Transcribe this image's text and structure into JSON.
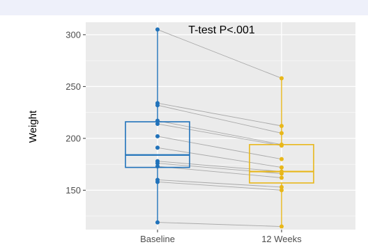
{
  "chart_data": {
    "type": "box",
    "title": "",
    "xlabel": "",
    "ylabel": "Weight",
    "categories": [
      "Baseline",
      "12 Weeks"
    ],
    "ylim": [
      112,
      312
    ],
    "yticks": [
      150,
      200,
      250,
      300
    ],
    "grid": true,
    "annotation": "T-test P<.001",
    "colors": {
      "Baseline": "#2072ba",
      "12 Weeks": "#e8b71a",
      "panel": "#ebebeb",
      "gridline": "#ffffff",
      "pairline": "#a8a8a8"
    },
    "boxes": [
      {
        "category": "Baseline",
        "q1": 172,
        "median": 184,
        "q3": 216,
        "whisker_low": 119,
        "whisker_high": 305
      },
      {
        "category": "12 Weeks",
        "q1": 157,
        "median": 168,
        "q3": 194,
        "whisker_low": 115,
        "whisker_high": 258
      }
    ],
    "pairs": [
      {
        "baseline": 305,
        "week12": 258
      },
      {
        "baseline": 234,
        "week12": 212
      },
      {
        "baseline": 232,
        "week12": 205
      },
      {
        "baseline": 217,
        "week12": 194
      },
      {
        "baseline": 214,
        "week12": 193
      },
      {
        "baseline": 202,
        "week12": 180
      },
      {
        "baseline": 191,
        "week12": 172
      },
      {
        "baseline": 178,
        "week12": 168
      },
      {
        "baseline": 176,
        "week12": 166
      },
      {
        "baseline": 173,
        "week12": 162
      },
      {
        "baseline": 160,
        "week12": 153
      },
      {
        "baseline": 158,
        "week12": 150
      },
      {
        "baseline": 119,
        "week12": 115
      }
    ]
  }
}
